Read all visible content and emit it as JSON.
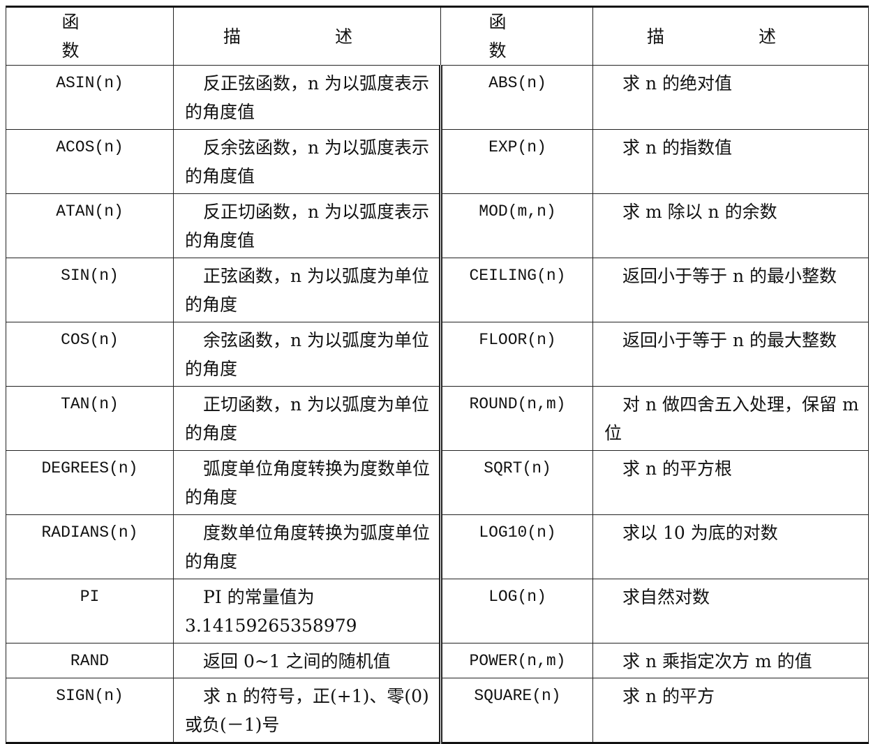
{
  "header": {
    "function": "函　数",
    "description": "描　述"
  },
  "rows": [
    {
      "left_fn": "ASIN(n)",
      "left_desc": "反正弦函数，n 为以弧度表示的角度值",
      "right_fn": "ABS(n)",
      "right_desc": "求 n 的绝对值"
    },
    {
      "left_fn": "ACOS(n)",
      "left_desc": "反余弦函数，n 为以弧度表示的角度值",
      "right_fn": "EXP(n)",
      "right_desc": "求 n 的指数值"
    },
    {
      "left_fn": "ATAN(n)",
      "left_desc": "反正切函数，n 为以弧度表示的角度值",
      "right_fn": "MOD(m,n)",
      "right_desc": "求 m 除以 n 的余数"
    },
    {
      "left_fn": "SIN(n)",
      "left_desc": "正弦函数，n 为以弧度为单位的角度",
      "right_fn": "CEILING(n)",
      "right_desc": "返回小于等于 n 的最小整数"
    },
    {
      "left_fn": "COS(n)",
      "left_desc": "余弦函数，n 为以弧度为单位的角度",
      "right_fn": "FLOOR(n)",
      "right_desc": "返回小于等于 n 的最大整数"
    },
    {
      "left_fn": "TAN(n)",
      "left_desc": "正切函数，n 为以弧度为单位的角度",
      "right_fn": "ROUND(n,m)",
      "right_desc": "对 n 做四舍五入处理，保留 m 位"
    },
    {
      "left_fn": "DEGREES(n)",
      "left_desc": "弧度单位角度转换为度数单位的角度",
      "right_fn": "SQRT(n)",
      "right_desc": "求 n 的平方根"
    },
    {
      "left_fn": "RADIANS(n)",
      "left_desc": "度数单位角度转换为弧度单位的角度",
      "right_fn": "LOG10(n)",
      "right_desc": "求以 10 为底的对数"
    },
    {
      "left_fn": "PI",
      "left_desc": "PI 的常量值为 3.14159265358979",
      "right_fn": "LOG(n)",
      "right_desc": "求自然对数"
    },
    {
      "left_fn": "RAND",
      "left_desc": "返回 0~1 之间的随机值",
      "right_fn": "POWER(n,m)",
      "right_desc": "求 n 乘指定次方 m 的值"
    },
    {
      "left_fn": "SIGN(n)",
      "left_desc": "求 n 的符号，正(+1)、零(0)或负(－1)号",
      "right_fn": "SQUARE(n)",
      "right_desc": "求 n 的平方"
    }
  ]
}
